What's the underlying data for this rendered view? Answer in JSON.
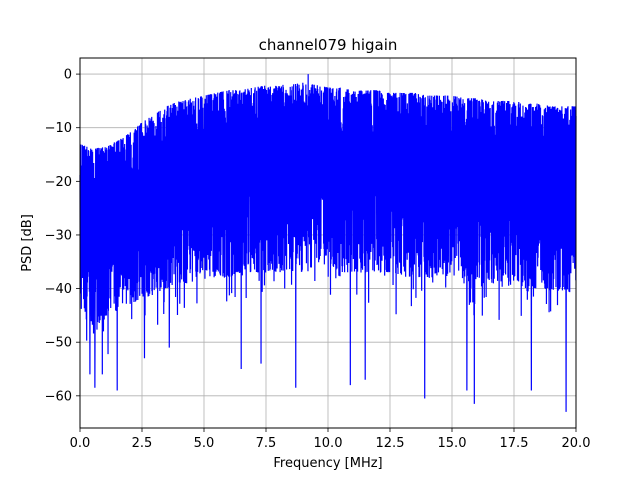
{
  "chart_data": {
    "type": "line",
    "title": "channel079 higain",
    "xlabel": "Frequency [MHz]",
    "ylabel": "PSD [dB]",
    "xlim": [
      0,
      20
    ],
    "ylim": [
      -66,
      3
    ],
    "grid": true,
    "series_color": "#0000ff",
    "x_ticks": [
      0,
      2.5,
      5,
      7.5,
      10,
      12.5,
      15,
      17.5,
      20
    ],
    "x_tick_labels": [
      "0.0",
      "2.5",
      "5.0",
      "7.5",
      "10.0",
      "12.5",
      "15.0",
      "17.5",
      "20.0"
    ],
    "y_ticks": [
      0,
      -10,
      -20,
      -30,
      -40,
      -50,
      -60
    ],
    "y_tick_labels": [
      "0",
      "−10",
      "−20",
      "−30",
      "−40",
      "−50",
      "−60"
    ],
    "series": [
      {
        "x": [
          0,
          0.5,
          1,
          1.5,
          2,
          2.5,
          3,
          3.5,
          4,
          4.5,
          5,
          5.5,
          6,
          6.5,
          7,
          7.5,
          8,
          8.5,
          9,
          9.5,
          10,
          10.5,
          11,
          11.5,
          12,
          12.5,
          13,
          13.5,
          14,
          14.5,
          15,
          15.5,
          16,
          16.5,
          17,
          17.5,
          18,
          18.5,
          19,
          19.5,
          20
        ],
        "upper_envelope": [
          -13,
          -14,
          -13.5,
          -12.5,
          -11,
          -9,
          -7.5,
          -6,
          -5,
          -4.5,
          -4,
          -3.5,
          -3,
          -3,
          -2.5,
          -2,
          -2,
          -2,
          -1.5,
          -2,
          -2.5,
          -2.5,
          -3,
          -3,
          -3,
          -3.5,
          -3.5,
          -3.5,
          -4,
          -4,
          -4,
          -4.5,
          -4.5,
          -5,
          -5,
          -5,
          -5.5,
          -5.5,
          -6,
          -6,
          -6
        ],
        "lower_envelope": [
          -44,
          -47,
          -46,
          -44,
          -43,
          -42,
          -41,
          -40,
          -39,
          -39,
          -38,
          -38,
          -38,
          -37,
          -37,
          -37,
          -37,
          -37,
          -37,
          -36.5,
          -36,
          -37,
          -37,
          -37,
          -37,
          -37,
          -37.5,
          -38,
          -38,
          -38,
          -38,
          -38.5,
          -39,
          -39,
          -39.5,
          -39.5,
          -40,
          -40,
          -40.5,
          -40.5,
          -41
        ],
        "notable_minima": [
          {
            "x": 0.4,
            "y": -56
          },
          {
            "x": 0.6,
            "y": -58.5
          },
          {
            "x": 0.9,
            "y": -56
          },
          {
            "x": 1.5,
            "y": -59
          },
          {
            "x": 2.6,
            "y": -53
          },
          {
            "x": 3.6,
            "y": -51
          },
          {
            "x": 6.5,
            "y": -55
          },
          {
            "x": 7.3,
            "y": -54
          },
          {
            "x": 8.7,
            "y": -58.5
          },
          {
            "x": 10.9,
            "y": -58
          },
          {
            "x": 11.5,
            "y": -57
          },
          {
            "x": 13.9,
            "y": -60.5
          },
          {
            "x": 15.6,
            "y": -59
          },
          {
            "x": 15.9,
            "y": -61.5
          },
          {
            "x": 18.2,
            "y": -59
          },
          {
            "x": 19.6,
            "y": -63
          }
        ],
        "notable_maxima": [
          {
            "x": 9.2,
            "y": 0
          }
        ]
      }
    ]
  }
}
